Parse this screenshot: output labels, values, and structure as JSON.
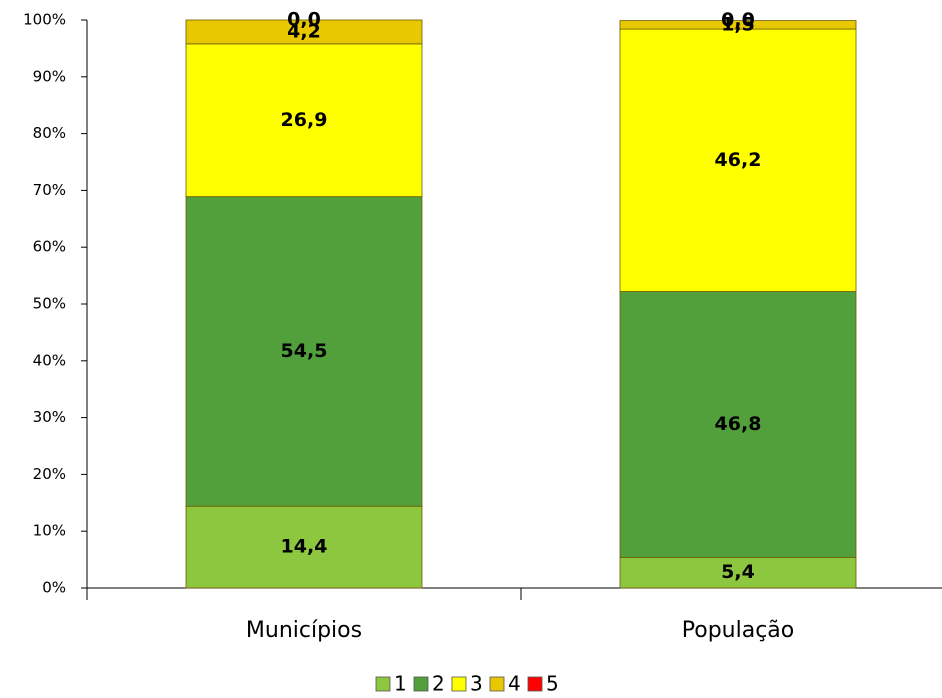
{
  "chart_data": {
    "type": "stacked_bar",
    "categories": [
      "Municípios",
      "População"
    ],
    "series": [
      {
        "name": "1",
        "color": "#8dc63f",
        "values": [
          14.4,
          5.4
        ],
        "value_labels": [
          "14,4",
          "5,4"
        ]
      },
      {
        "name": "2",
        "color": "#52a03c",
        "values": [
          54.5,
          46.8
        ],
        "value_labels": [
          "54,5",
          "46,8"
        ]
      },
      {
        "name": "3",
        "color": "#ffff00",
        "values": [
          26.9,
          46.2
        ],
        "value_labels": [
          "26,9",
          "46,2"
        ]
      },
      {
        "name": "4",
        "color": "#e8c800",
        "values": [
          4.2,
          1.5
        ],
        "value_labels": [
          "4,2",
          "1,5"
        ]
      },
      {
        "name": "5",
        "color": "#ff0000",
        "values": [
          0.0,
          0.0
        ],
        "value_labels": [
          "0,0",
          "0,0"
        ]
      }
    ],
    "ylim": [
      0,
      100
    ],
    "yticks": [
      {
        "value": 0,
        "label": "0%"
      },
      {
        "value": 10,
        "label": "10%"
      },
      {
        "value": 20,
        "label": "20%"
      },
      {
        "value": 30,
        "label": "30%"
      },
      {
        "value": 40,
        "label": "40%"
      },
      {
        "value": 50,
        "label": "50%"
      },
      {
        "value": 60,
        "label": "60%"
      },
      {
        "value": 70,
        "label": "70%"
      },
      {
        "value": 80,
        "label": "80%"
      },
      {
        "value": 90,
        "label": "90%"
      },
      {
        "value": 100,
        "label": "100%"
      }
    ],
    "grid": false,
    "legend": "bottom"
  }
}
